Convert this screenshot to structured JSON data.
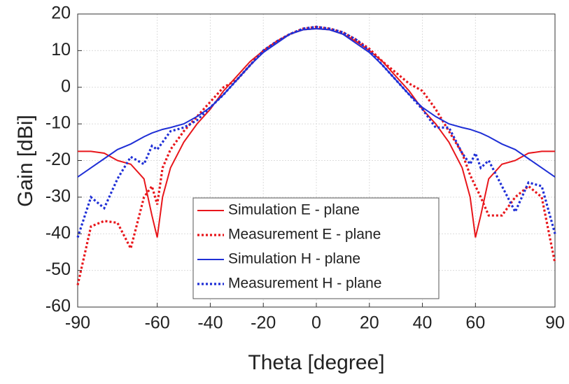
{
  "chart_data": {
    "type": "line",
    "xlabel": "Theta [degree]",
    "ylabel": "Gain [dBi]",
    "x": [
      -90,
      -85,
      -80,
      -75,
      -70,
      -65,
      -62,
      -60,
      -58,
      -55,
      -50,
      -45,
      -40,
      -35,
      -30,
      -25,
      -20,
      -15,
      -10,
      -5,
      0,
      5,
      10,
      15,
      20,
      25,
      30,
      35,
      40,
      45,
      50,
      55,
      58,
      60,
      62,
      65,
      70,
      75,
      80,
      85,
      90
    ],
    "xlim": [
      -90,
      90
    ],
    "xticks": [
      -90,
      -60,
      -40,
      -20,
      0,
      20,
      40,
      60,
      90
    ],
    "ylim": [
      -60,
      20
    ],
    "yticks": [
      -60,
      -50,
      -40,
      -30,
      -20,
      -10,
      0,
      10,
      20
    ],
    "grid": true,
    "legend": "bottom",
    "series": [
      {
        "name": "Simulation E - plane",
        "color": "#e8161b",
        "style": "solid",
        "values": [
          -17.5,
          -17.5,
          -18,
          -20,
          -21,
          -25,
          -35,
          -41,
          -30,
          -22,
          -15,
          -10,
          -6,
          -1,
          3,
          7,
          10,
          12.5,
          14.5,
          15.7,
          16,
          15.7,
          14.5,
          12.5,
          10,
          7,
          3,
          -1,
          -6,
          -10,
          -15,
          -22,
          -30,
          -41,
          -35,
          -25,
          -21,
          -20,
          -18,
          -17.5,
          -17.5
        ]
      },
      {
        "name": "Measurement E - plane",
        "color": "#e8161b",
        "style": "dotted",
        "values": [
          -54,
          -38,
          -36.5,
          -37,
          -44,
          -30,
          -27,
          -32,
          -22,
          -17,
          -12,
          -8,
          -4,
          0,
          2,
          6,
          10,
          12.5,
          14.5,
          16,
          16.5,
          16,
          15,
          13,
          10.5,
          7,
          4,
          1,
          -1,
          -6,
          -12,
          -18,
          -24,
          -27,
          -30,
          -35,
          -35,
          -30,
          -27,
          -30,
          -48
        ]
      },
      {
        "name": "Simulation H - plane",
        "color": "#1f2fd6",
        "style": "solid",
        "values": [
          -24.5,
          -22,
          -19.5,
          -17,
          -15.5,
          -13.5,
          -12.5,
          -12,
          -11.5,
          -11,
          -10,
          -8,
          -5.5,
          -2,
          2,
          6,
          9.5,
          12,
          14.5,
          15.7,
          16,
          15.7,
          14.5,
          12,
          9.5,
          6,
          2,
          -2,
          -5.5,
          -8,
          -10,
          -11,
          -11.5,
          -12,
          -12.5,
          -13.5,
          -15.5,
          -17,
          -19.5,
          -22,
          -24.5
        ]
      },
      {
        "name": "Measurement H - plane",
        "color": "#1f2fd6",
        "style": "dotted",
        "values": [
          -41,
          -30,
          -33,
          -25,
          -19,
          -21,
          -16,
          -17,
          -15,
          -12,
          -11,
          -9,
          -5.5,
          -2,
          2,
          6,
          10,
          12.5,
          14.5,
          16,
          16.5,
          16,
          15,
          13,
          10,
          6,
          2,
          -2,
          -6,
          -11,
          -11,
          -18,
          -21,
          -18,
          -22,
          -20,
          -27,
          -34,
          -26,
          -27,
          -40
        ]
      }
    ]
  }
}
